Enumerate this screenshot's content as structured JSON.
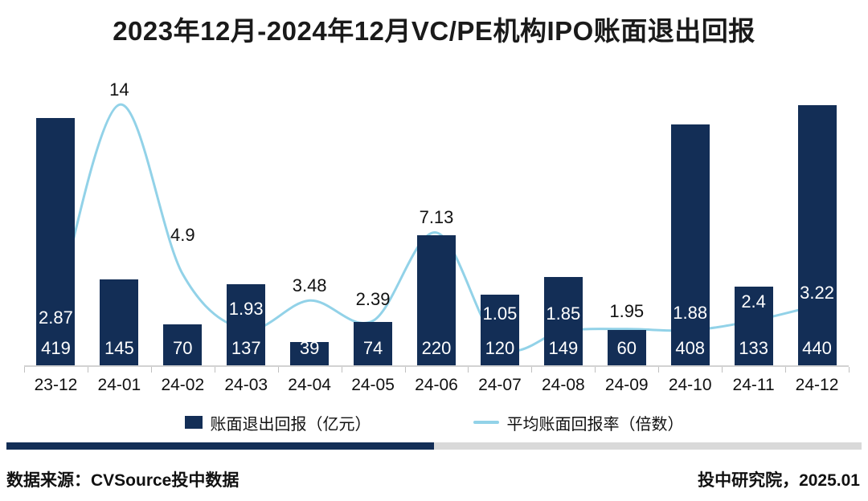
{
  "title": "2023年12月-2024年12月VC/PE机构IPO账面退出回报",
  "chart_data": {
    "type": "bar",
    "subtype": "combo-bar-line",
    "categories": [
      "23-12",
      "24-01",
      "24-02",
      "24-03",
      "24-04",
      "24-05",
      "24-06",
      "24-07",
      "24-08",
      "24-09",
      "24-10",
      "24-11",
      "24-12"
    ],
    "series": [
      {
        "name": "账面退出回报（亿元）",
        "type": "bar",
        "values": [
          419,
          145,
          70,
          137,
          39,
          74,
          220,
          120,
          149,
          60,
          408,
          133,
          440
        ]
      },
      {
        "name": "平均账面回报率（倍数）",
        "type": "line",
        "values": [
          2.87,
          14,
          4.9,
          1.93,
          3.48,
          2.39,
          7.13,
          1.05,
          1.85,
          1.95,
          1.88,
          2.4,
          3.22
        ]
      }
    ],
    "bar_axis": {
      "min": 0,
      "max": 495,
      "visible": false
    },
    "line_axis": {
      "min": 0,
      "max": 15.7,
      "visible": false
    },
    "grid": false,
    "legend_position": "bottom",
    "data_labels": {
      "bar_labels_inside_bottom": true,
      "ratio_label_dy": [
        8,
        -18,
        -48,
        -25,
        -18,
        -27,
        -19,
        -40,
        -21,
        -22,
        -21,
        -23,
        -15
      ],
      "ratio_label_light": [
        true,
        false,
        false,
        true,
        false,
        false,
        false,
        true,
        true,
        false,
        true,
        true,
        true
      ]
    }
  },
  "legend": {
    "bar_label": "账面退出回报（亿元）",
    "line_label": "平均账面回报率（倍数）"
  },
  "footer": {
    "source": "数据来源：CVSource投中数据",
    "credit": "投中研究院，2025.01"
  },
  "colors": {
    "bar": "#132e56",
    "line": "#92d2e8",
    "divider_left": "#132e56",
    "divider_right": "#d9d9d9",
    "axis": "#d2d2d2",
    "tick": "#c0c0c0",
    "label_light": "#ffffff",
    "label_dark": "#111111"
  }
}
